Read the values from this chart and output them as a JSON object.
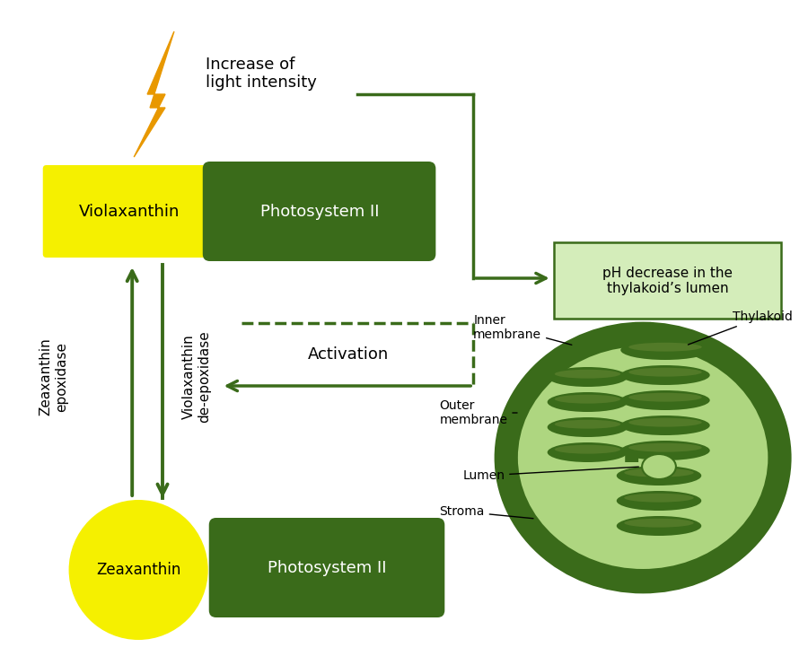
{
  "dark_green": "#3a6b1a",
  "medium_green": "#4a7a22",
  "light_green_stroma": "#aed680",
  "yellow": "#f5f000",
  "orange": "#e89800",
  "white": "#ffffff",
  "ph_box_color": "#d4edba",
  "thylakoid_highlight": "#5a8a30",
  "violaxanthin_text": "Violaxanthin",
  "zeaxanthin_text": "Zeaxanthin",
  "psii_text": "Photosystem II",
  "increase_light_text": "Increase of\nlight intensity",
  "ph_decrease_text": "pH decrease in the\nthylakoid’s lumen",
  "activation_text": "Activation",
  "zeaxanthin_epoxidase_text": "Zeaxanthin\nepoxidase",
  "violaxanthin_deepoxidase_text": "Violaxanthin\nde-epoxidase",
  "inner_membrane_text": "Inner\nmembrane",
  "outer_membrane_text": "Outer\nmembrane",
  "thylakoid_text": "Thylakoid",
  "lumen_text": "Lumen",
  "stroma_text": "Stroma"
}
